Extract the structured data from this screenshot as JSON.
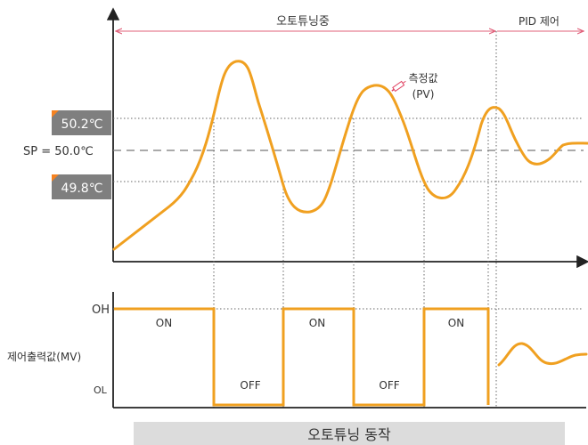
{
  "labels": {
    "phase_autotuning": "오토튜닝중",
    "phase_pid": "PID 제어",
    "pv_label": "측정값",
    "pv_abbr": "(PV)",
    "upper_band": "50.2℃",
    "setpoint": "SP = 50.0℃",
    "lower_band": "49.8℃",
    "oh": "OH",
    "ol": "OL",
    "mv_label": "제어출력값(MV)",
    "on": "ON",
    "off": "OFF",
    "caption": "오토튜닝 동작"
  },
  "colors": {
    "signal": "#f0a020",
    "phase_arrow": "#e0607a",
    "band_box": "#7f7f7f",
    "band_marker": "#f58220",
    "axis": "#222222",
    "guide": "#666666",
    "caption_bg": "#dcdcdc"
  },
  "icons": {
    "pv_pointer": "syringe-icon"
  },
  "output_states": [
    "ON",
    "OFF",
    "ON",
    "OFF",
    "ON"
  ]
}
